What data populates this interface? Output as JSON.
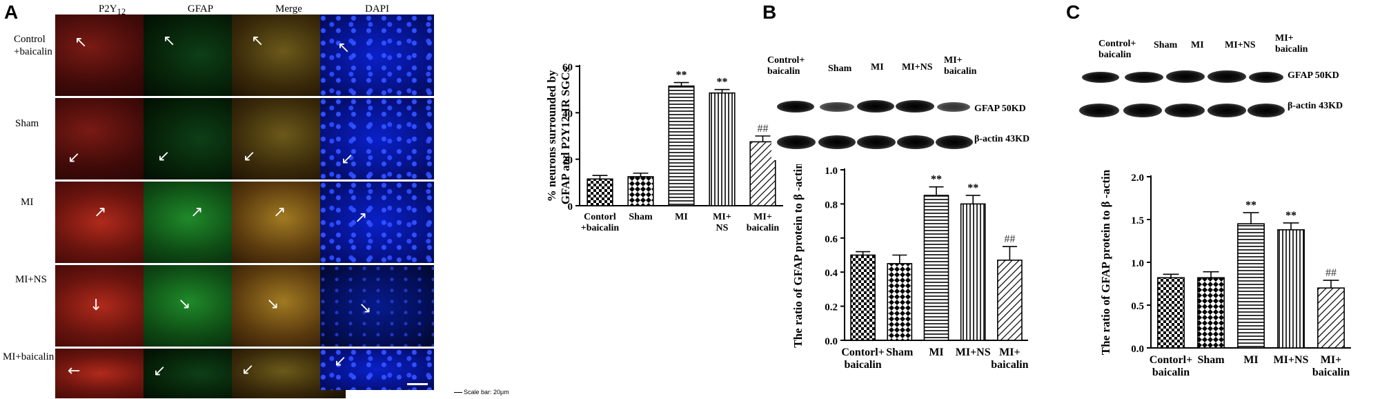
{
  "panel_a": {
    "letter": "A",
    "columns": [
      "P2Y",
      "GFAP",
      "Merge",
      "DAPI"
    ],
    "p2y_subscript": "12",
    "rows": [
      {
        "line1": "Control",
        "line2": "+baicalin"
      },
      {
        "line1": "Sham",
        "line2": ""
      },
      {
        "line1": "MI",
        "line2": ""
      },
      {
        "line1": "MI+NS",
        "line2": ""
      },
      {
        "line1": "MI+baicalin",
        "line2": ""
      }
    ],
    "scale_bar": "Scale bar: 20μm"
  },
  "panel_b": {
    "letter": "B",
    "lanes": [
      {
        "line1": "Control+",
        "line2": "baicalin"
      },
      {
        "line1": "Sham",
        "line2": ""
      },
      {
        "line1": "MI",
        "line2": ""
      },
      {
        "line1": "MI+NS",
        "line2": ""
      },
      {
        "line1": "MI+",
        "line2": "baicalin"
      }
    ],
    "band1": "GFAP 50KD",
    "band2": "β-actin 43KD"
  },
  "panel_c": {
    "letter": "C",
    "lanes": [
      {
        "line1": "Control+",
        "line2": "baicalin"
      },
      {
        "line1": "Sham",
        "line2": ""
      },
      {
        "line1": "MI",
        "line2": ""
      },
      {
        "line1": "MI+NS",
        "line2": ""
      },
      {
        "line1": "MI+",
        "line2": "baicalin"
      }
    ],
    "band1": "GFAP 50KD",
    "band2": "β-actin 43KD"
  },
  "chart_data": [
    {
      "type": "bar",
      "panel": "A",
      "ylabel_line1": "% neurons surrounded by",
      "ylabel_line2": "GFAP and P2Y12-IR SGCs",
      "ylim": [
        0,
        60
      ],
      "yticks": [
        0,
        20,
        40,
        60
      ],
      "categories": [
        {
          "line1": "Contorl",
          "line2": "+baicalin"
        },
        {
          "line1": "Sham",
          "line2": ""
        },
        {
          "line1": "MI",
          "line2": ""
        },
        {
          "line1": "MI+",
          "line2": "NS"
        },
        {
          "line1": "MI+",
          "line2": "baicalin"
        }
      ],
      "values": [
        11.5,
        12.5,
        51.5,
        48.5,
        27.5
      ],
      "errors": [
        1.5,
        1.5,
        1.5,
        1.5,
        2.5
      ],
      "annotations": [
        "",
        "",
        "**",
        "**",
        "##"
      ],
      "patterns": [
        "check",
        "diamond",
        "hlines",
        "vlines",
        "diag"
      ]
    },
    {
      "type": "bar",
      "panel": "B",
      "ylabel": "The  ratio of GFAP protein to β -actin",
      "ylim": [
        0.0,
        1.0
      ],
      "yticks": [
        "0.0",
        "0.2",
        "0.4",
        "0.6",
        "0.8",
        "1.0"
      ],
      "categories": [
        {
          "line1": "Contorl+",
          "line2": "baicalin"
        },
        {
          "line1": "Sham",
          "line2": ""
        },
        {
          "line1": "MI",
          "line2": ""
        },
        {
          "line1": "MI+NS",
          "line2": ""
        },
        {
          "line1": "MI+",
          "line2": "baicalin"
        }
      ],
      "values": [
        0.5,
        0.45,
        0.85,
        0.8,
        0.47
      ],
      "errors": [
        0.02,
        0.05,
        0.05,
        0.05,
        0.08
      ],
      "annotations": [
        "",
        "",
        "**",
        "**",
        "##"
      ],
      "patterns": [
        "check",
        "diamond",
        "hlines",
        "vlines",
        "diag"
      ]
    },
    {
      "type": "bar",
      "panel": "C",
      "ylabel": "The  ratio of GFAP protein to β -actin",
      "ylim": [
        0.0,
        2.0
      ],
      "yticks": [
        "0.0",
        "0.5",
        "1.0",
        "1.5",
        "2.0"
      ],
      "categories": [
        {
          "line1": "Contorl+",
          "line2": "baicalin"
        },
        {
          "line1": "Sham",
          "line2": ""
        },
        {
          "line1": "MI",
          "line2": ""
        },
        {
          "line1": "MI+NS",
          "line2": ""
        },
        {
          "line1": "MI+",
          "line2": "baicalin"
        }
      ],
      "values": [
        0.82,
        0.82,
        1.45,
        1.38,
        0.7
      ],
      "errors": [
        0.04,
        0.07,
        0.13,
        0.08,
        0.09
      ],
      "annotations": [
        "",
        "",
        "**",
        "**",
        "##"
      ],
      "patterns": [
        "check",
        "diamond",
        "hlines",
        "vlines",
        "diag"
      ]
    }
  ]
}
